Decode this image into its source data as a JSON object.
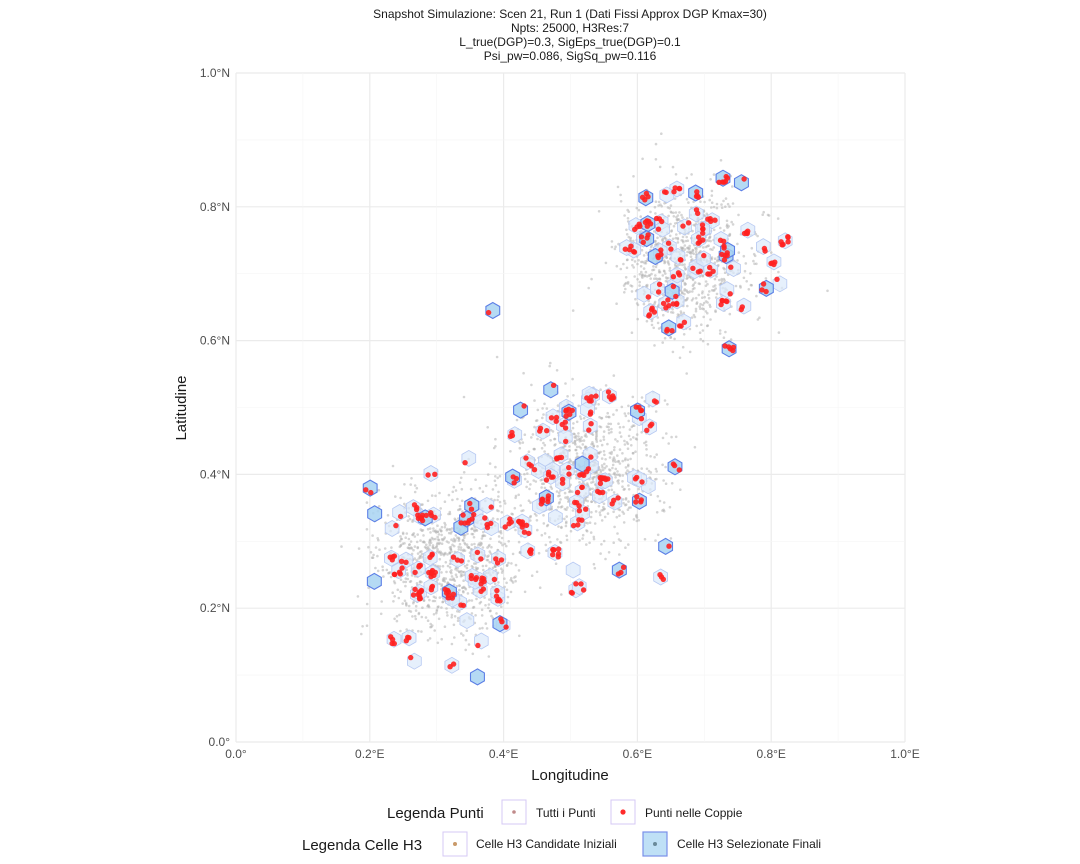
{
  "chart_data": {
    "type": "scatter",
    "title": [
      "Snapshot Simulazione: Scen 21, Run 1 (Dati Fissi Approx DGP Kmax=30)",
      "Npts: 25000, H3Res:7",
      "L_true(DGP)=0.3, SigEps_true(DGP)=0.1",
      "Psi_pw=0.086, SigSq_pw=0.116"
    ],
    "xlabel": "Longitudine",
    "ylabel": "Latitudine",
    "xlim": [
      0,
      1
    ],
    "ylim": [
      0,
      1
    ],
    "x_ticks": [
      0,
      0.2,
      0.4,
      0.6,
      0.8,
      1.0
    ],
    "y_ticks": [
      0,
      0.2,
      0.4,
      0.6,
      0.8,
      1.0
    ],
    "x_tick_labels": [
      "0.0°",
      "0.2°E",
      "0.4°E",
      "0.6°E",
      "0.8°E",
      "1.0°E"
    ],
    "y_tick_labels": [
      "0.0°",
      "0.2°N",
      "0.4°N",
      "0.6°N",
      "0.8°N",
      "1.0°N"
    ],
    "grid": true,
    "clusters": [
      {
        "center_x": 0.32,
        "center_y": 0.27,
        "spread": 0.055
      },
      {
        "center_x": 0.52,
        "center_y": 0.4,
        "spread": 0.055
      },
      {
        "center_x": 0.67,
        "center_y": 0.72,
        "spread": 0.05
      }
    ],
    "series": [
      {
        "name": "Tutti i Punti",
        "color": "#b3b3b3",
        "count": 25000,
        "shown_sample": 2600
      },
      {
        "name": "Punti nelle Coppie",
        "color": "#ff2020",
        "shown_sample": 420
      },
      {
        "name": "Celle H3 Candidate Iniziali",
        "fill": "#dbe9fb",
        "stroke": "#b7c9f2",
        "shown_sample": 130
      },
      {
        "name": "Celle H3 Selezionate Finali",
        "fill": "#a8d4f2",
        "stroke": "#5c7fe6",
        "shown_sample": 35
      }
    ],
    "legend_position": "bottom"
  },
  "legend": {
    "punti_title": "Legenda Punti",
    "punti_items": [
      "Tutti i Punti",
      "Punti nelle Coppie"
    ],
    "celle_title": "Legenda Celle H3",
    "celle_items": [
      "Celle H3 Candidate Iniziali",
      "Celle H3 Selezionate Finali"
    ],
    "colors": {
      "all_points": "#c08a8a",
      "pair_points": "#ff2a2a",
      "candidate_fill": "#ffffff",
      "candidate_stroke": "#d9c8f2",
      "candidate_dot": "#c99a6a",
      "selected_fill": "#bfe0f6",
      "selected_stroke": "#7a90e8",
      "selected_dot": "#6a8a9a",
      "key_box_stroke": "#d6c8f4"
    }
  }
}
